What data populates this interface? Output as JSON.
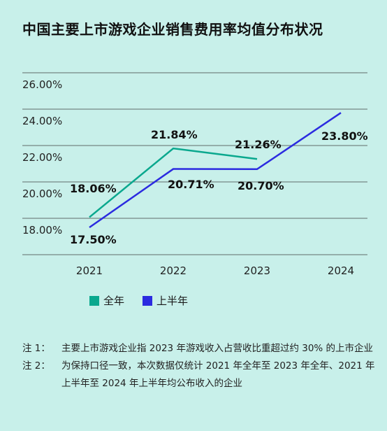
{
  "title": "中国主要上市游戏企业销售费用率均值分布状况",
  "colors": {
    "background": "#c8f0ea",
    "full_year": "#0aa88e",
    "half_year": "#2b2be0",
    "grid": "#5f6b6a"
  },
  "chart_data": {
    "type": "line",
    "title": "中国主要上市游戏企业销售费用率均值分布状况",
    "categories": [
      "2021",
      "2022",
      "2023",
      "2024"
    ],
    "y_ticks": [
      "26.00%",
      "24.00%",
      "22.00%",
      "20.00%",
      "18.00%"
    ],
    "ylim": [
      16,
      26
    ],
    "grid": true,
    "legend_position": "bottom-left",
    "series": [
      {
        "name": "全年",
        "values": [
          18.06,
          21.84,
          21.26,
          null
        ],
        "labels": [
          "18.06%",
          "21.84%",
          "21.26%",
          null
        ]
      },
      {
        "name": "上半年",
        "values": [
          17.5,
          20.71,
          20.7,
          23.8
        ],
        "labels": [
          "17.50%",
          "20.71%",
          "20.70%",
          "23.80%"
        ]
      }
    ]
  },
  "legend": {
    "full_year": "全年",
    "half_year": "上半年"
  },
  "notes": [
    {
      "label": "注 1：",
      "text": "主要上市游戏企业指 2023 年游戏收入占营收比重超过约 30% 的上市企业"
    },
    {
      "label": "注 2：",
      "text": "为保持口径一致，本次数据仅统计 2021 年全年至 2023 年全年、2021 年上半年至 2024 年上半年均公布收入的企业"
    }
  ]
}
